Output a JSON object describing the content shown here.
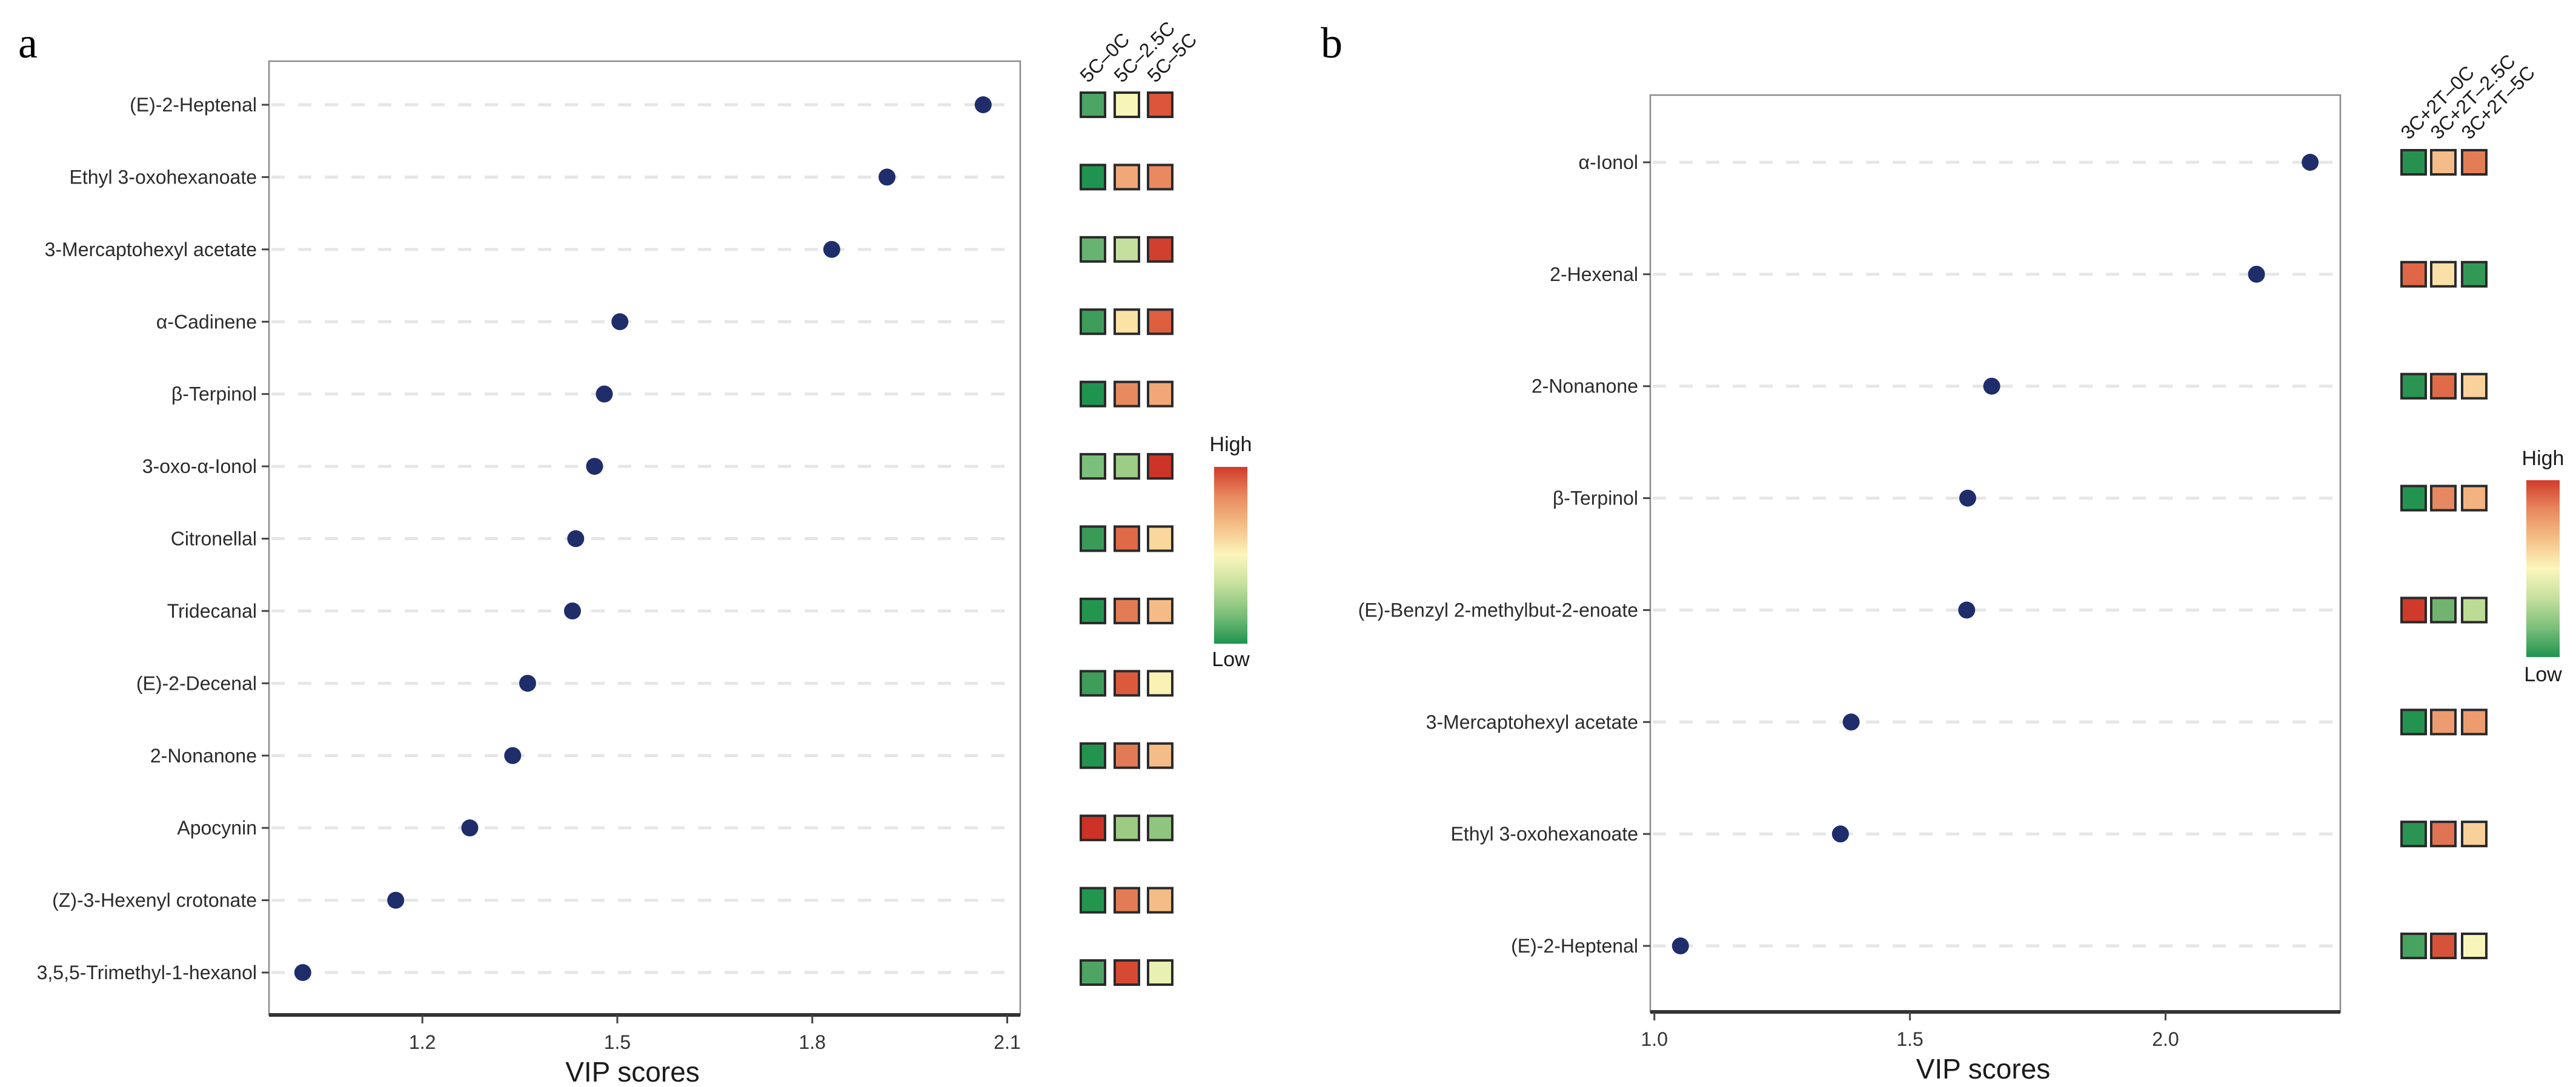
{
  "figure": {
    "panels": [
      "a",
      "b"
    ]
  },
  "chart_data": [
    {
      "panel": "a",
      "type": "scatter",
      "title": "",
      "xlabel": "VIP scores",
      "ylabel": "",
      "xlim": [
        0.964,
        2.12
      ],
      "xticks": [
        1.2,
        1.5,
        1.8,
        2.1
      ],
      "xtick_labels": [
        "1.2",
        "1.5",
        "1.8",
        "2.1"
      ],
      "grid": "horizontal dashed",
      "point_color": "#1f2d6b",
      "categories": [
        "(E)-2-Heptenal",
        "Ethyl 3-oxohexanoate",
        "3-Mercaptohexyl acetate",
        "α-Cadinene",
        "β-Terpinol",
        "3-oxo-α-Ionol",
        "Citronellal",
        "Tridecanal",
        "(E)-2-Decenal",
        "2-Nonanone",
        "Apocynin",
        "(Z)-3-Hexenyl crotonate",
        "3,5,5-Trimethyl-1-hexanol"
      ],
      "values": [
        2.063,
        1.915,
        1.83,
        1.504,
        1.48,
        1.465,
        1.436,
        1.431,
        1.362,
        1.339,
        1.273,
        1.159,
        1.016
      ],
      "heatmap": {
        "type": "heatmap",
        "columns": [
          "5C–0C",
          "5C–2.5C",
          "5C–5C"
        ],
        "colors": [
          [
            "#4ca565",
            "#f8f5b8",
            "#dd553a"
          ],
          [
            "#1f9450",
            "#f0a878",
            "#e88960"
          ],
          [
            "#68b372",
            "#c5e09e",
            "#d13f2e"
          ],
          [
            "#3f9d5c",
            "#fbe3a6",
            "#dd5f40"
          ],
          [
            "#1f9450",
            "#e88a60",
            "#f0a878"
          ],
          [
            "#7cbf7a",
            "#9ccc86",
            "#cc3427"
          ],
          [
            "#3a9b59",
            "#e06a48",
            "#fad79c"
          ],
          [
            "#24954f",
            "#e37b55",
            "#f4bb86"
          ],
          [
            "#3f9d5c",
            "#dc5a3c",
            "#faf2b4"
          ],
          [
            "#23944f",
            "#e27b55",
            "#f4bd88"
          ],
          [
            "#cc3226",
            "#9ccb84",
            "#8fc57e"
          ],
          [
            "#24954f",
            "#e37c56",
            "#f4bd88"
          ],
          [
            "#4fa463",
            "#d64a33",
            "#e8f0b2"
          ]
        ]
      },
      "legend": {
        "high_label": "High",
        "low_label": "Low",
        "placement": "right",
        "gradient": [
          "#d13b2a",
          "#e88960",
          "#f4c088",
          "#fbf6bc",
          "#c5e09e",
          "#7cbf7a",
          "#1e9450"
        ]
      }
    },
    {
      "panel": "b",
      "type": "scatter",
      "title": "",
      "xlabel": "VIP scores",
      "ylabel": "",
      "xlim": [
        0.992,
        2.342
      ],
      "xticks": [
        1.0,
        1.5,
        2.0
      ],
      "xtick_labels": [
        "1.0",
        "1.5",
        "2.0"
      ],
      "grid": "horizontal dashed",
      "point_color": "#1f2d6b",
      "categories": [
        "α-Ionol",
        "2-Hexenal",
        "2-Nonanone",
        "β-Terpinol",
        "(E)-Benzyl 2-methylbut-2-enoate",
        "3-Mercaptohexyl acetate",
        "Ethyl 3-oxohexanoate",
        "(E)-2-Heptenal"
      ],
      "values": [
        2.283,
        2.178,
        1.66,
        1.613,
        1.611,
        1.385,
        1.364,
        1.051
      ],
      "heatmap": {
        "type": "heatmap",
        "columns": [
          "3C+2T–0C",
          "3C+2T–2.5C",
          "3C+2T–5C"
        ],
        "colors": [
          [
            "#279250",
            "#f4bc88",
            "#e37d56"
          ],
          [
            "#df6646",
            "#f8e0a6",
            "#319955"
          ],
          [
            "#2a9453",
            "#e06b49",
            "#f8d29a"
          ],
          [
            "#22944f",
            "#e68860",
            "#f2b380"
          ],
          [
            "#cf3a2b",
            "#70b46f",
            "#bcdc96"
          ],
          [
            "#22944f",
            "#ed9c70",
            "#ed9c70"
          ],
          [
            "#2a9453",
            "#e07352",
            "#f8d09a"
          ],
          [
            "#48a260",
            "#d6533a",
            "#f8f5bc"
          ]
        ]
      },
      "legend": {
        "high_label": "High",
        "low_label": "Low",
        "placement": "right",
        "gradient": [
          "#d13b2a",
          "#e88960",
          "#f4c088",
          "#fbf6bc",
          "#c5e09e",
          "#7cbf7a",
          "#1e9450"
        ]
      }
    }
  ]
}
